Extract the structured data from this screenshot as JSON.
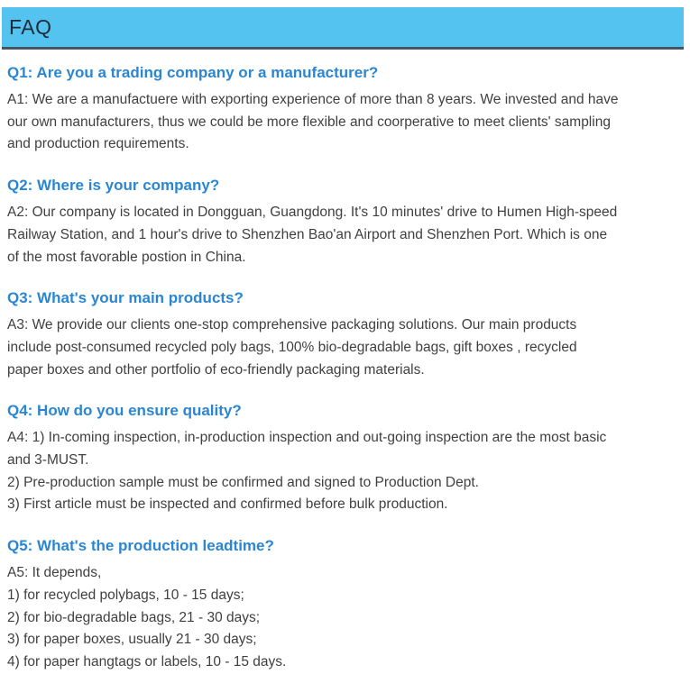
{
  "page": {
    "title": "FAQ"
  },
  "colors": {
    "header_bg": "#55c3f0",
    "header_border": "#44566a",
    "title_color": "#1c2b38",
    "question_color": "#2b86d2",
    "body_color": "#404040",
    "page_bg": "#ffffff"
  },
  "faq": {
    "sections": [
      {
        "question": "Q1: Are you a trading company or a manufacturer?",
        "answer_lines": [
          "A1: We are a manufactuere with exporting experience of more than 8 years. We invested and have",
          "our own manufacturers, thus we could be more flexible and coorperative to meet clients' sampling",
          "and production requirements."
        ]
      },
      {
        "question": "Q2: Where is your company?",
        "answer_lines": [
          "A2: Our company is located in Dongguan, Guangdong. It's 10 minutes' drive to Humen High-speed",
          "Railway Station, and 1 hour's drive to Shenzhen Bao'an Airport and Shenzhen Port. Which is one",
          "of the most favorable postion in China."
        ]
      },
      {
        "question": "Q3: What's your main products?",
        "answer_lines": [
          "A3: We provide our clients one-stop comprehensive packaging solutions. Our main products",
          "include post-consumed recycled poly bags, 100% bio-degradable bags, gift boxes , recycled",
          "paper boxes and other portfolio of eco-friendly packaging materials."
        ]
      },
      {
        "question": "Q4: How do you ensure quality?",
        "answer_lines": [
          "A4: 1) In-coming inspection, in-production inspection and out-going inspection are the most basic",
          "and 3-MUST.",
          "2) Pre-production sample must be confirmed and signed to Production Dept.",
          "3) First article must be inspected and confirmed before bulk production."
        ]
      },
      {
        "question": "Q5: What's the production leadtime?",
        "answer_lines": [
          "A5: It depends,",
          "1) for recycled polybags, 10 - 15 days;",
          "2) for bio-degradable bags, 21 - 30 days;",
          "3) for paper boxes, usually 21 - 30 days;",
          "4) for paper hangtags or labels, 10 - 15 days."
        ]
      }
    ]
  }
}
